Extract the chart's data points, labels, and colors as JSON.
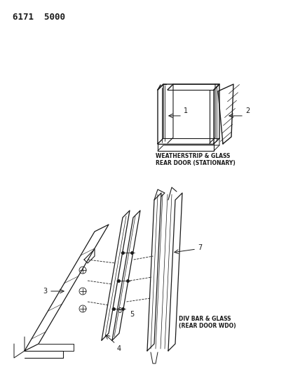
{
  "title_code": "6171  5000",
  "background_color": "#ffffff",
  "line_color": "#1a1a1a",
  "label1_text": "WEATHERSTRIP & GLASS\nREAR DOOR (STATIONARY)",
  "label2_text": "DIV BAR & GLASS\n(REAR DOOR WDO)"
}
